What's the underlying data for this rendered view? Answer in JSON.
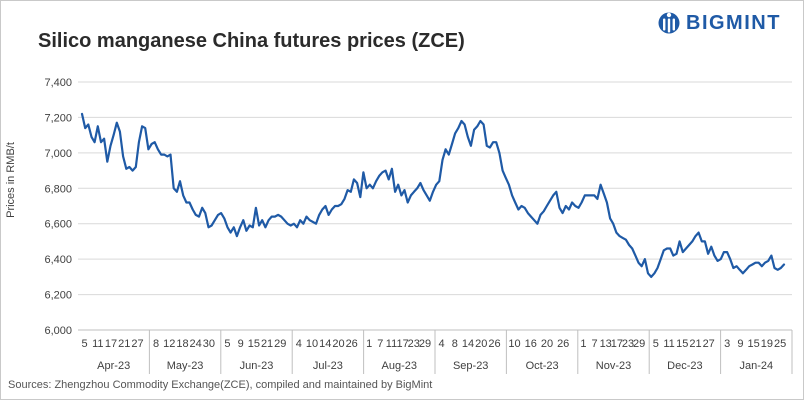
{
  "header": {
    "title": "Silico manganese China futures prices (ZCE)",
    "brand": "BIGMINT"
  },
  "footer": {
    "source": "Sources: Zhengzhou Commodity Exchange(ZCE), compiled and maintained by BigMint"
  },
  "colors": {
    "line": "#1f5aa6",
    "grid": "#d9d9d9",
    "brand": "#1f5aa6"
  },
  "chart_data": {
    "type": "line",
    "title": "Silico manganese China futures prices (ZCE)",
    "ylabel": "Prices in RMB/t",
    "xlabel": "",
    "ylim": [
      6000,
      7400
    ],
    "yticks": [
      "6,000",
      "6,200",
      "6,400",
      "6,600",
      "6,800",
      "7,000",
      "7,200",
      "7,400"
    ],
    "grid": true,
    "legend": "none",
    "months": [
      "Apr-23",
      "May-23",
      "Jun-23",
      "Jul-23",
      "Aug-23",
      "Sep-23",
      "Oct-23",
      "Nov-23",
      "Dec-23",
      "Jan-24"
    ],
    "day_ticks": [
      [
        "5",
        "11",
        "17",
        "21",
        "27"
      ],
      [
        "8",
        "12",
        "18",
        "24",
        "30"
      ],
      [
        "5",
        "9",
        "15",
        "21",
        "29"
      ],
      [
        "4",
        "10",
        "14",
        "20",
        "26"
      ],
      [
        "1",
        "7",
        "11",
        "17",
        "23",
        "29"
      ],
      [
        "4",
        "8",
        "14",
        "20",
        "26"
      ],
      [
        "10",
        "16",
        "20",
        "26"
      ],
      [
        "1",
        "7",
        "13",
        "17",
        "23",
        "29"
      ],
      [
        "5",
        "11",
        "15",
        "21",
        "27"
      ],
      [
        "3",
        "9",
        "15",
        "19",
        "25"
      ]
    ],
    "series": [
      {
        "values": [
          7220,
          7140,
          7160,
          7090,
          7060,
          7150,
          7060,
          7080,
          6950,
          7040,
          7100,
          7170,
          7120,
          6980,
          6910,
          6920,
          6900,
          6920,
          7060,
          7150,
          7140,
          7020,
          7050,
          7060,
          7020,
          6990,
          6990,
          6980,
          6990,
          6800,
          6780,
          6840,
          6760,
          6720,
          6720,
          6680,
          6650,
          6640,
          6690,
          6660,
          6580,
          6590,
          6620,
          6650,
          6660,
          6630,
          6580,
          6550,
          6580,
          6530,
          6580,
          6620,
          6560,
          6590,
          6580,
          6690,
          6590,
          6620,
          6580,
          6620,
          6640,
          6640,
          6650,
          6640,
          6620,
          6600,
          6590,
          6600,
          6580,
          6620,
          6600,
          6640,
          6620,
          6610,
          6600,
          6650,
          6680,
          6700,
          6650,
          6680,
          6700,
          6700,
          6710,
          6740,
          6790,
          6780,
          6850,
          6830,
          6750,
          6890,
          6800,
          6820,
          6800,
          6840,
          6870,
          6890,
          6900,
          6850,
          6910,
          6780,
          6820,
          6760,
          6790,
          6720,
          6760,
          6780,
          6800,
          6830,
          6790,
          6760,
          6730,
          6780,
          6820,
          6840,
          6960,
          7020,
          6990,
          7050,
          7110,
          7140,
          7180,
          7160,
          7090,
          7040,
          7130,
          7150,
          7180,
          7160,
          7040,
          7030,
          7060,
          7060,
          7000,
          6900,
          6860,
          6820,
          6760,
          6720,
          6680,
          6700,
          6690,
          6660,
          6640,
          6620,
          6600,
          6650,
          6670,
          6700,
          6730,
          6760,
          6780,
          6690,
          6660,
          6700,
          6680,
          6720,
          6700,
          6690,
          6720,
          6760,
          6760,
          6760,
          6760,
          6740,
          6820,
          6770,
          6720,
          6630,
          6600,
          6550,
          6530,
          6520,
          6510,
          6480,
          6460,
          6420,
          6380,
          6360,
          6400,
          6320,
          6300,
          6320,
          6350,
          6400,
          6450,
          6460,
          6460,
          6420,
          6430,
          6500,
          6440,
          6460,
          6480,
          6500,
          6530,
          6550,
          6500,
          6500,
          6430,
          6470,
          6420,
          6390,
          6400,
          6440,
          6440,
          6400,
          6350,
          6360,
          6340,
          6320,
          6340,
          6360,
          6370,
          6380,
          6380,
          6360,
          6380,
          6390,
          6420,
          6350,
          6340,
          6350,
          6370
        ]
      }
    ]
  }
}
